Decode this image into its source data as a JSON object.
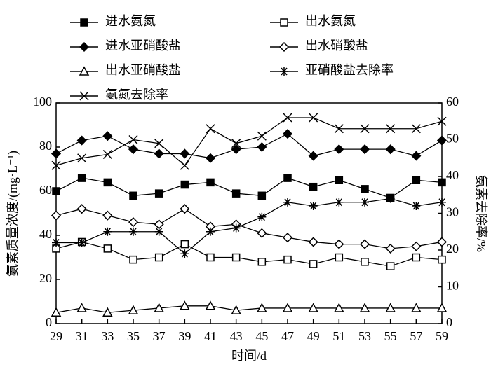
{
  "chart_data": {
    "type": "line",
    "x": [
      29,
      31,
      33,
      35,
      37,
      39,
      41,
      43,
      45,
      47,
      49,
      51,
      53,
      55,
      57,
      59
    ],
    "xlim": [
      29,
      59
    ],
    "xticks": [
      29,
      31,
      33,
      35,
      37,
      39,
      41,
      43,
      45,
      47,
      49,
      51,
      53,
      55,
      57,
      59
    ],
    "ylim": [
      0,
      100
    ],
    "yticks": [
      0,
      20,
      40,
      60,
      80,
      100
    ],
    "y2lim": [
      0,
      60
    ],
    "y2ticks": [
      0,
      10,
      20,
      30,
      40,
      50,
      60
    ],
    "x_label": "时间/d",
    "y_label": "氨素质量浓度/(mg·L⁻¹)",
    "y2_label": "氨素去除率/%",
    "series": [
      {
        "name": "进水氨氮",
        "color": "#000000",
        "marker": "square-filled",
        "values": [
          60,
          66,
          64,
          58,
          59,
          63,
          64,
          59,
          58,
          66,
          62,
          65,
          61,
          57,
          65,
          64
        ]
      },
      {
        "name": "出水氨氮",
        "color": "#000000",
        "marker": "square-open",
        "values": [
          34,
          37,
          34,
          29,
          30,
          36,
          30,
          30,
          28,
          29,
          27,
          30,
          28,
          26,
          30,
          29
        ]
      },
      {
        "name": "进水亚硝酸盐",
        "color": "#000000",
        "marker": "diamond-filled",
        "values": [
          77,
          83,
          85,
          79,
          77,
          77,
          75,
          79,
          80,
          86,
          76,
          79,
          79,
          79,
          76,
          83
        ]
      },
      {
        "name": "出水硝酸盐",
        "color": "#000000",
        "marker": "diamond-open",
        "values": [
          49,
          52,
          49,
          46,
          45,
          52,
          44,
          45,
          41,
          39,
          37,
          36,
          36,
          34,
          35,
          37
        ]
      },
      {
        "name": "出水亚硝酸盐",
        "color": "#000000",
        "marker": "triangle-open",
        "values": [
          5,
          7,
          5,
          6,
          7,
          8,
          8,
          6,
          7,
          7,
          7,
          7,
          7,
          7,
          7,
          7
        ]
      },
      {
        "name": "亚硝酸盐去除率",
        "color": "#000000",
        "marker": "asterisk",
        "axis": "y2",
        "values": [
          22,
          22,
          25,
          25,
          25,
          19,
          25,
          26,
          29,
          33,
          32,
          33,
          33,
          34,
          32,
          33
        ]
      },
      {
        "name": "氨氮去除率",
        "color": "#000000",
        "marker": "cross",
        "axis": "y2",
        "values": [
          43,
          45,
          46,
          50,
          49,
          43,
          53,
          49,
          51,
          56,
          56,
          53,
          53,
          53,
          53,
          55
        ]
      }
    ]
  }
}
